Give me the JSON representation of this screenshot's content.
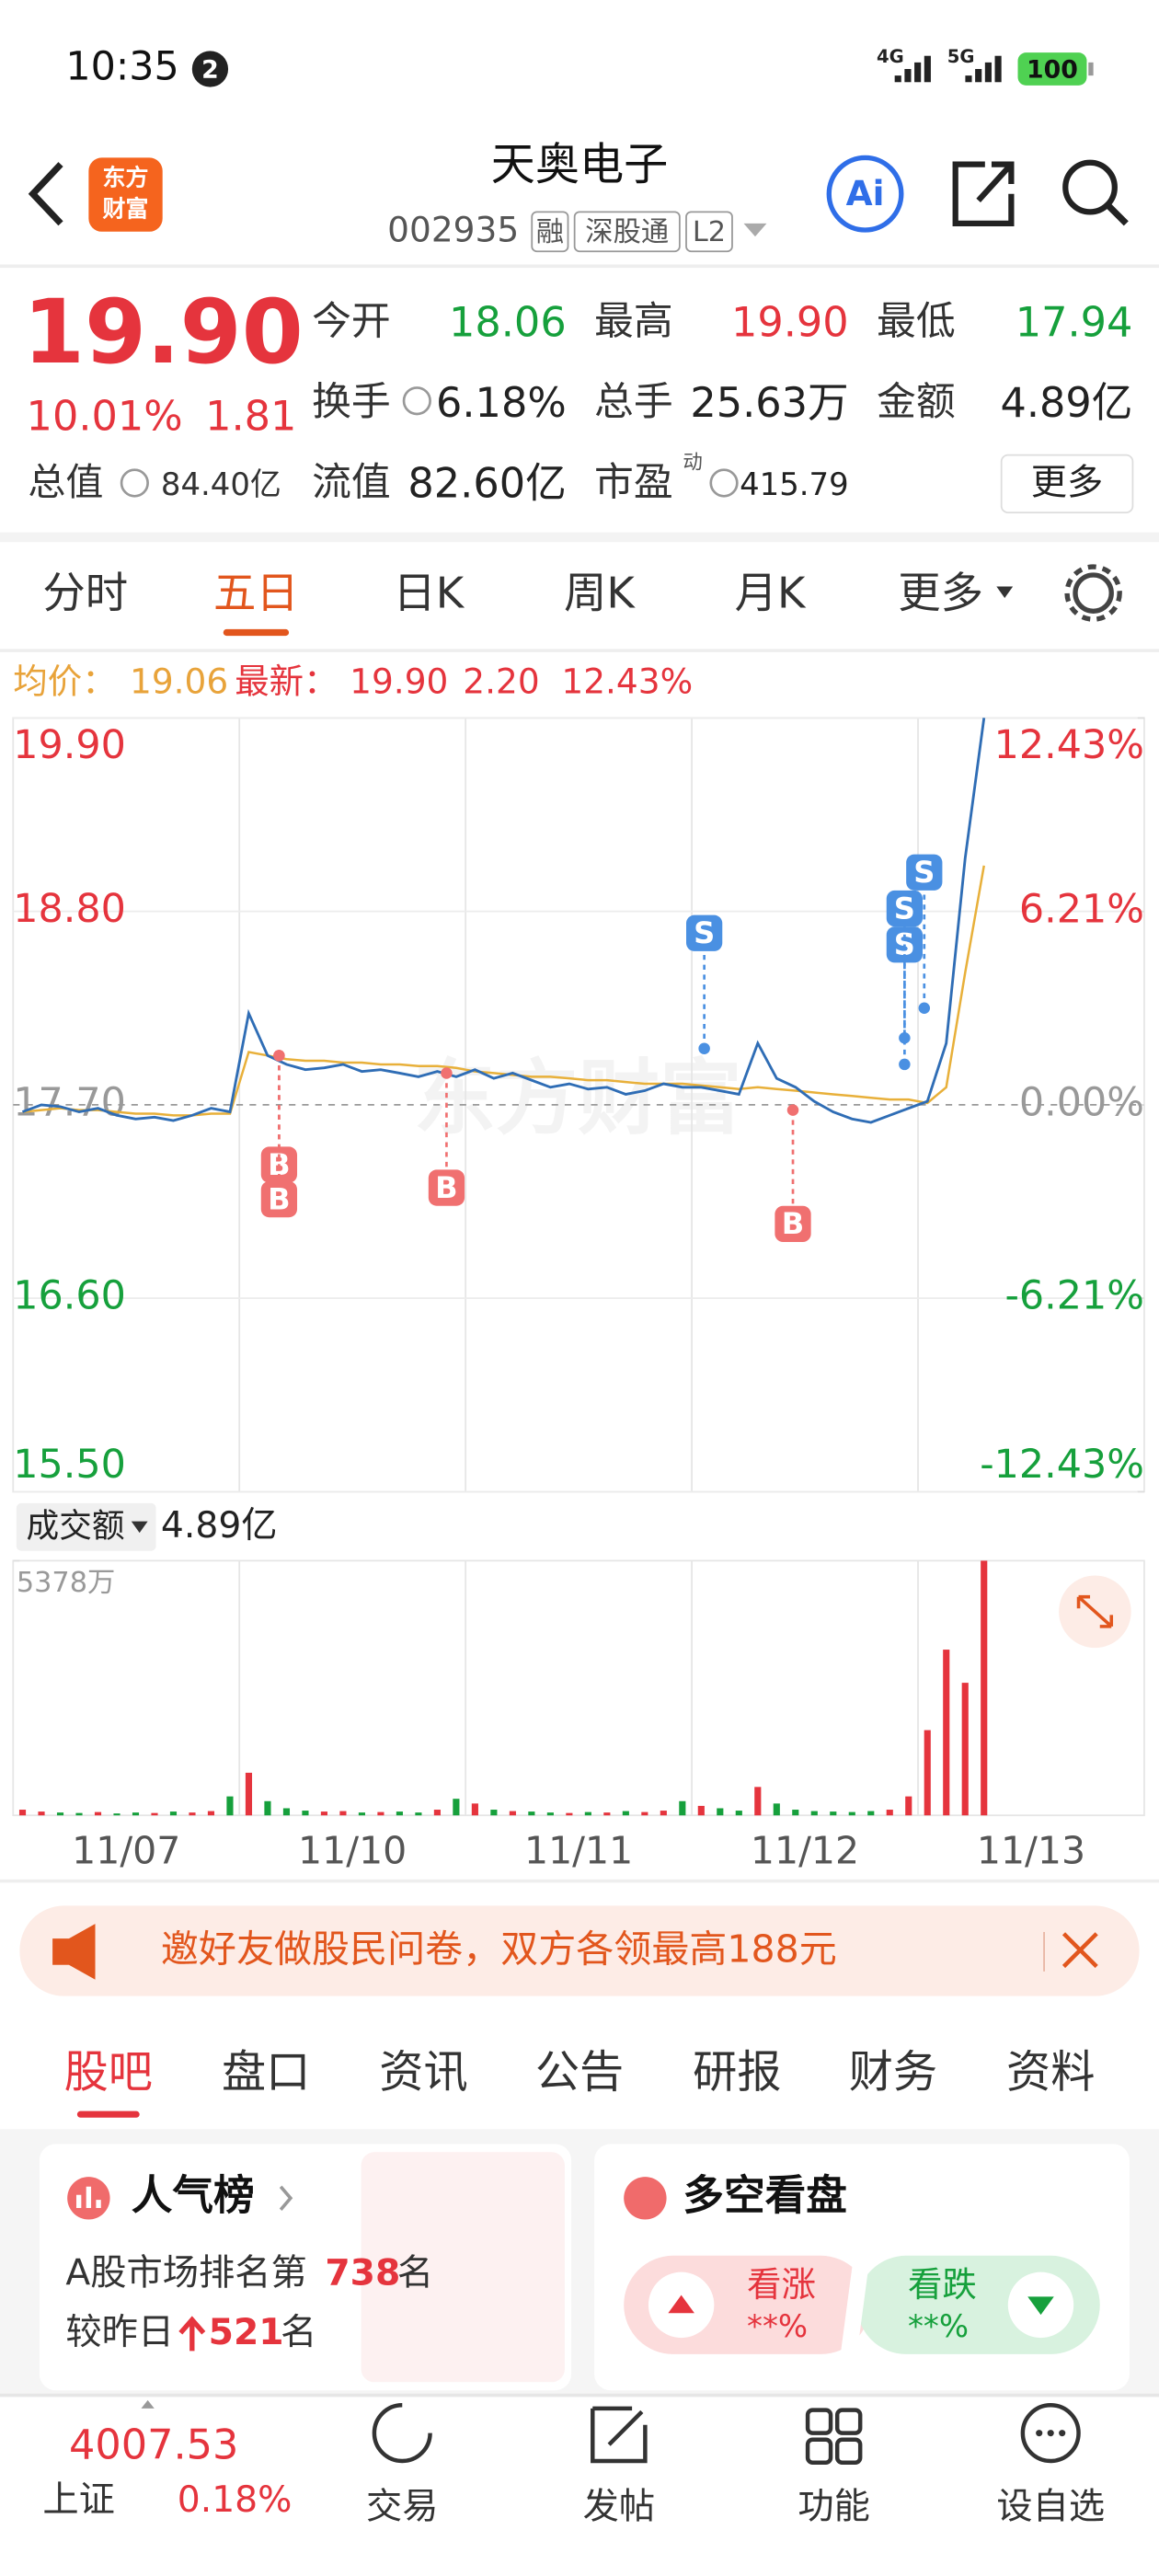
{
  "status_bar": {
    "time": "10:35",
    "notification_count": "2",
    "network_1": "4G",
    "network_2": "5G",
    "battery": "100"
  },
  "header": {
    "logo": [
      "东方",
      "财富"
    ],
    "title": "天奥电子",
    "code": "002935",
    "tags": [
      "融",
      "深股通",
      "L2"
    ],
    "ai": "Ai"
  },
  "quote": {
    "price": "19.90",
    "change_pct": "10.01%",
    "change": "1.81",
    "total_value_label": "总值",
    "total_value": "84.40亿",
    "stats": [
      {
        "label": "今开",
        "value": "18.06"
      },
      {
        "label": "最高",
        "value": "19.90"
      },
      {
        "label": "最低",
        "value": "17.94"
      },
      {
        "label": "换手",
        "value": "6.18%"
      },
      {
        "label": "总手",
        "value": "25.63万"
      },
      {
        "label": "金额",
        "value": "4.89亿"
      },
      {
        "label": "流值",
        "value": "82.60亿"
      },
      {
        "label": "市盈",
        "value": "415.79"
      }
    ],
    "pe_note": "动",
    "more": "更多"
  },
  "chart_tabs": {
    "items": [
      "分时",
      "五日",
      "日K",
      "周K",
      "月K",
      "更多"
    ],
    "active": 1
  },
  "info_line": {
    "avg_label": "均价：",
    "avg": "19.06",
    "latest_label": "最新：",
    "latest": "19.90",
    "change": "2.20",
    "change_pct": "12.43%"
  },
  "chart": {
    "type": "line",
    "watermark": "东方财富",
    "dates": [
      "11/07",
      "11/10",
      "11/11",
      "11/12",
      "11/13"
    ],
    "ylim": [
      15.5,
      19.9
    ],
    "yticks": [
      {
        "value": 19.9,
        "label": "19.90"
      },
      {
        "value": 18.8,
        "label": "18.80"
      },
      {
        "value": 17.7,
        "label": "17.70"
      },
      {
        "value": 16.6,
        "label": "16.60"
      },
      {
        "value": 15.5,
        "label": "15.50"
      }
    ],
    "y2lim": [
      -12.43,
      12.43
    ],
    "y2ticks": [
      {
        "value": 12.43,
        "label": "12.43%"
      },
      {
        "value": 6.21,
        "label": "6.21%"
      },
      {
        "value": 0,
        "label": "0.00%"
      },
      {
        "value": -6.21,
        "label": "-6.21%"
      },
      {
        "value": -12.43,
        "label": "-12.43%"
      }
    ],
    "series": [
      {
        "color": "#2f6db5",
        "values": [
          17.66,
          17.7,
          17.69,
          17.66,
          17.68,
          17.64,
          17.62,
          17.63,
          17.61,
          17.64,
          17.68,
          17.66,
          18.22,
          17.98,
          17.93,
          17.9,
          17.91,
          17.93,
          17.89,
          17.9,
          17.88,
          17.86,
          17.89,
          17.86,
          17.9,
          17.85,
          17.88,
          17.84,
          17.8,
          17.82,
          17.79,
          17.8,
          17.76,
          17.78,
          17.82,
          17.8,
          17.8,
          17.78,
          17.76,
          18.05,
          17.85,
          17.8,
          17.72,
          17.66,
          17.62,
          17.6,
          17.64,
          17.68,
          17.72,
          18.05,
          19.1,
          19.9,
          null,
          null,
          null,
          null,
          null,
          null,
          null,
          null
        ]
      },
      {
        "color": "#e8b03a",
        "values": [
          17.66,
          17.67,
          17.68,
          17.67,
          17.67,
          17.66,
          17.65,
          17.65,
          17.64,
          17.64,
          17.65,
          17.65,
          18.0,
          17.98,
          17.96,
          17.95,
          17.95,
          17.94,
          17.94,
          17.93,
          17.93,
          17.92,
          17.92,
          17.91,
          17.89,
          17.88,
          17.87,
          17.86,
          17.86,
          17.85,
          17.84,
          17.84,
          17.83,
          17.82,
          17.82,
          17.82,
          17.81,
          17.8,
          17.79,
          17.8,
          17.79,
          17.78,
          17.77,
          17.76,
          17.75,
          17.74,
          17.73,
          17.73,
          17.71,
          17.8,
          18.45,
          19.06,
          null,
          null,
          null,
          null,
          null,
          null,
          null,
          null
        ]
      }
    ],
    "trade_marks": [
      {
        "label": "B",
        "price": 17.98
      },
      {
        "label": "B",
        "price": 17.98
      },
      {
        "label": "B",
        "price": 17.88
      },
      {
        "label": "S",
        "price": 18.02
      },
      {
        "label": "B",
        "price": 17.67
      },
      {
        "label": "S",
        "price": 17.93
      },
      {
        "label": "S",
        "price": 18.08
      },
      {
        "label": "S",
        "price": 18.25
      }
    ]
  },
  "volume": {
    "selector": "成交额",
    "total": "4.89亿",
    "ylim": [
      0,
      5378
    ],
    "yticks": [
      {
        "value": 5378,
        "label": "5378万"
      }
    ],
    "values": [
      120,
      80,
      60,
      50,
      70,
      40,
      60,
      50,
      80,
      60,
      90,
      400,
      900,
      300,
      150,
      100,
      80,
      90,
      60,
      70,
      80,
      60,
      120,
      350,
      250,
      120,
      90,
      80,
      60,
      50,
      70,
      60,
      90,
      70,
      100,
      300,
      200,
      150,
      100,
      600,
      250,
      120,
      90,
      80,
      70,
      90,
      120,
      400,
      1800,
      3500,
      2800,
      5378,
      null,
      null,
      null,
      null,
      null,
      null,
      null,
      null
    ]
  },
  "banner": {
    "text": "邀好友做股民问卷，双方各领最高188元"
  },
  "tabs": {
    "items": [
      "股吧",
      "盘口",
      "资讯",
      "公告",
      "研报",
      "财务",
      "资料"
    ],
    "active": 0
  },
  "cards": {
    "popularity": {
      "title": "人气榜",
      "rank_prefix": "A股市场排名第",
      "rank": "738",
      "rank_suffix": "名",
      "change_prefix": "较昨日",
      "change": "521",
      "change_suffix": "名"
    },
    "sentiment": {
      "title": "多空看盘",
      "bull": "看涨",
      "bull_pct": "**%",
      "bear": "看跌",
      "bear_pct": "**%"
    }
  },
  "bottom_nav": {
    "index_value": "4007.53",
    "index_name": "上证",
    "index_change": "0.18%",
    "items": [
      "交易",
      "发帖",
      "功能",
      "设自选"
    ]
  }
}
